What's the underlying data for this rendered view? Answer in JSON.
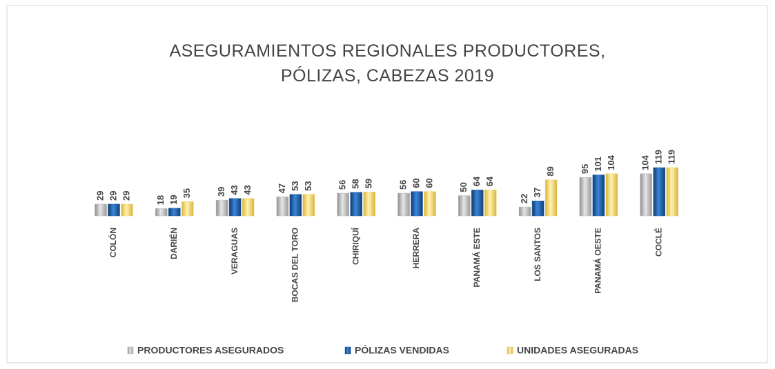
{
  "chart_data": {
    "type": "bar",
    "title": "ASEGURAMIENTOS REGIONALES PRODUCTORES, PÓLIZAS, CABEZAS  2019",
    "categories": [
      "COLÓN",
      "DARIÉN",
      "VERAGUAS",
      "BOCAS DEL TORO",
      "CHIRIQUÍ",
      "HERRERA",
      "PANAMÁ ESTE",
      "LOS SANTOS",
      "PANAMÁ OESTE",
      "COCLÉ"
    ],
    "series": [
      {
        "name": "PRODUCTORES ASEGURADOS",
        "color": "#b4b4b4",
        "values": [
          29,
          18,
          39,
          47,
          56,
          56,
          50,
          22,
          95,
          104
        ]
      },
      {
        "name": "PÓLIZAS VENDIDAS",
        "color": "#1f5fa8",
        "values": [
          29,
          19,
          43,
          53,
          58,
          60,
          64,
          37,
          101,
          119
        ]
      },
      {
        "name": "UNIDADES ASEGURADAS",
        "color": "#f2d165",
        "values": [
          29,
          35,
          43,
          53,
          59,
          60,
          64,
          89,
          104,
          119
        ]
      }
    ],
    "legend": "bottom"
  }
}
